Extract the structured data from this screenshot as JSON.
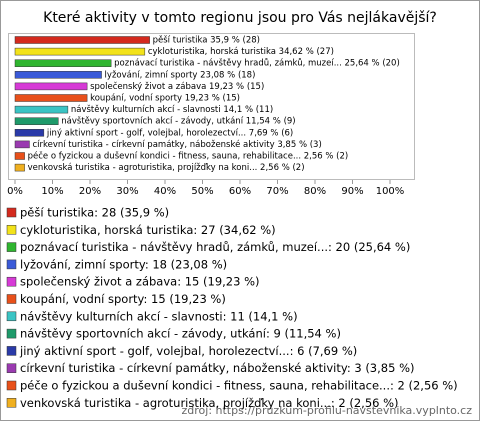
{
  "chart_data": {
    "type": "bar",
    "orientation": "horizontal",
    "title": "Které aktivity v tomto regionu jsou pro Vás nejlákavější?",
    "categories": [
      "pěší turistika",
      "cykloturistika, horská turistika",
      "poznávací turistika - návštěvy hradů, zámků, muzeí...",
      "lyžování, zimní sporty",
      "společenský život a zábava",
      "koupání, vodní sporty",
      "návštěvy kulturních akcí - slavnosti",
      "návštěvy sportovních akcí - závody, utkání",
      "jiný aktivní sport - golf, volejbal, horolezectví...",
      "církevní turistika - církevní památky, náboženské aktivity",
      "péče o fyzickou a duševní kondici - fitness, sauna, rehabilitace...",
      "venkovská turistika - agroturistika, projížďky na koni..."
    ],
    "values": [
      35.9,
      34.62,
      25.64,
      23.08,
      19.23,
      19.23,
      14.1,
      11.54,
      7.69,
      3.85,
      2.56,
      2.56
    ],
    "value_labels": [
      "pěší turistika 35,9 % (28)",
      "cykloturistika, horská turistika 34,62 % (27)",
      "poznávací turistika - návštěvy hradů, zámků, muzeí... 25,64 % (20)",
      "lyžování, zimní sporty 23,08 % (18)",
      "společenský život a zábava 19,23 % (15)",
      "koupání, vodní sporty 19,23 % (15)",
      "návštěvy kulturních akcí - slavnosti 14,1 % (11)",
      "návštěvy sportovních akcí - závody, utkání 11,54 % (9)",
      "jiný aktivní sport - golf, volejbal, horolezectví... 7,69 % (6)",
      "církevní turistika - církevní památky, náboženské aktivity 3,85 % (3)",
      "péče o fyzickou a duševní kondici - fitness, sauna, rehabilitace... 2,56 % (2)",
      "venkovská turistika - agroturistika, projížďky na koni... 2,56 % (2)"
    ],
    "colors": [
      "#d42a1e",
      "#f2e21a",
      "#2fb52f",
      "#3a5ad8",
      "#d63ad6",
      "#e8501a",
      "#3ac4c4",
      "#1e9a6a",
      "#2a3aa8",
      "#9a3ab0",
      "#e8501a",
      "#f0b020"
    ],
    "legend": [
      "pěší turistika: 28 (35,9 %)",
      "cykloturistika, horská turistika: 27 (34,62 %)",
      "poznávací turistika - návštěvy hradů, zámků, muzeí...: 20 (25,64 %)",
      "lyžování, zimní sporty: 18 (23,08 %)",
      "společenský život a zábava: 15 (19,23 %)",
      "koupání, vodní sporty: 15 (19,23 %)",
      "návštěvy kulturních akcí - slavnosti: 11 (14,1 %)",
      "návštěvy sportovních akcí - závody, utkání: 9 (11,54 %)",
      "jiný aktivní sport - golf, volejbal, horolezectví...: 6 (7,69 %)",
      "církevní turistika - církevní památky, náboženské aktivity: 3 (3,85 %)",
      "péče o fyzickou a duševní kondici - fitness, sauna, rehabilitace...: 2 (2,56 %)",
      "venkovská turistika - agroturistika, projížďky na koni...: 2 (2,56 %)"
    ],
    "xlim": [
      0,
      100
    ],
    "xticks": [
      {
        "value": 0,
        "label": "0%"
      },
      {
        "value": 10,
        "label": "10%"
      },
      {
        "value": 20,
        "label": "20%"
      },
      {
        "value": 30,
        "label": "30%"
      },
      {
        "value": 40,
        "label": "40%"
      },
      {
        "value": 50,
        "label": "50%"
      },
      {
        "value": 60,
        "label": "60%"
      },
      {
        "value": 70,
        "label": "70%"
      },
      {
        "value": 80,
        "label": "80%"
      },
      {
        "value": 90,
        "label": "90%"
      },
      {
        "value": 100,
        "label": "100%"
      }
    ],
    "source": "zdroj: https://pruzkum-profilu-navstevnika.vyplnto.cz"
  }
}
